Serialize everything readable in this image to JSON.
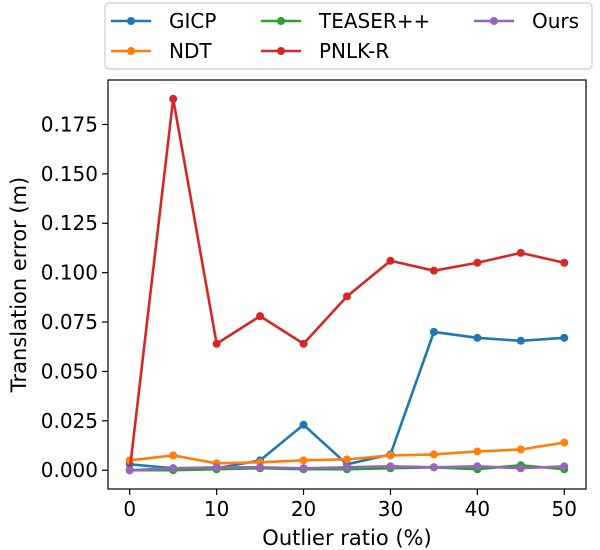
{
  "chart_data": {
    "type": "line",
    "title": "",
    "xlabel": "Outlier ratio (%)",
    "ylabel": "Translation error (m)",
    "x": [
      0,
      5,
      10,
      15,
      20,
      25,
      30,
      35,
      40,
      45,
      50
    ],
    "xlim": [
      -2.5,
      52.5
    ],
    "ylim": [
      -0.0095,
      0.1975
    ],
    "xticks": [
      0,
      10,
      20,
      30,
      40,
      50
    ],
    "yticks": [
      0.0,
      0.025,
      0.05,
      0.075,
      0.1,
      0.125,
      0.15,
      0.175
    ],
    "xtick_labels": [
      "0",
      "10",
      "20",
      "30",
      "40",
      "50"
    ],
    "ytick_labels": [
      "0.000",
      "0.025",
      "0.050",
      "0.075",
      "0.100",
      "0.125",
      "0.150",
      "0.175"
    ],
    "grid": false,
    "legend_position": "top",
    "series": [
      {
        "name": "GICP",
        "color": "#1f77b4",
        "values": [
          0.003,
          0.001,
          0.001,
          0.005,
          0.023,
          0.003,
          0.008,
          0.07,
          0.067,
          0.0655,
          0.067
        ]
      },
      {
        "name": "NDT",
        "color": "#ff7f0e",
        "values": [
          0.005,
          0.0075,
          0.0035,
          0.004,
          0.005,
          0.0055,
          0.0075,
          0.008,
          0.0095,
          0.0105,
          0.014
        ]
      },
      {
        "name": "TEASER++",
        "color": "#2ca02c",
        "values": [
          0.0,
          0.0,
          0.0005,
          0.001,
          0.0005,
          0.0005,
          0.001,
          0.0015,
          0.0005,
          0.0025,
          0.0005
        ]
      },
      {
        "name": "PNLK-R",
        "color": "#d62728",
        "values": [
          0.0,
          0.188,
          0.064,
          0.078,
          0.064,
          0.088,
          0.106,
          0.101,
          0.105,
          0.11,
          0.105
        ]
      },
      {
        "name": "Ours",
        "color": "#9467bd",
        "values": [
          0.0,
          0.001,
          0.0015,
          0.0015,
          0.001,
          0.0015,
          0.002,
          0.0015,
          0.002,
          0.001,
          0.002
        ]
      }
    ]
  }
}
